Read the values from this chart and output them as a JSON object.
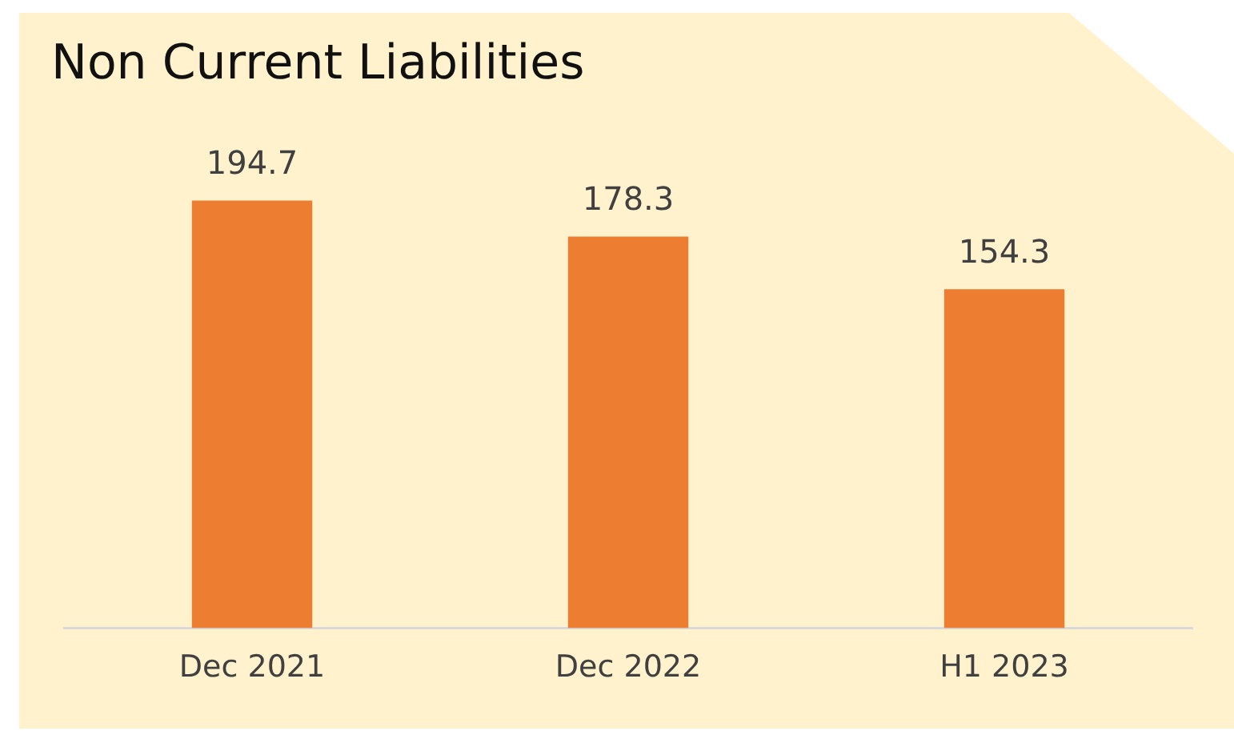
{
  "chart_data": {
    "type": "bar",
    "title": "Non Current Liabilities",
    "categories": [
      "Dec 2021",
      "Dec 2022",
      "H1 2023"
    ],
    "values": [
      194.7,
      178.3,
      154.3
    ],
    "color": "#ed7d31",
    "data_labels": true,
    "grid": false,
    "legend": false
  }
}
